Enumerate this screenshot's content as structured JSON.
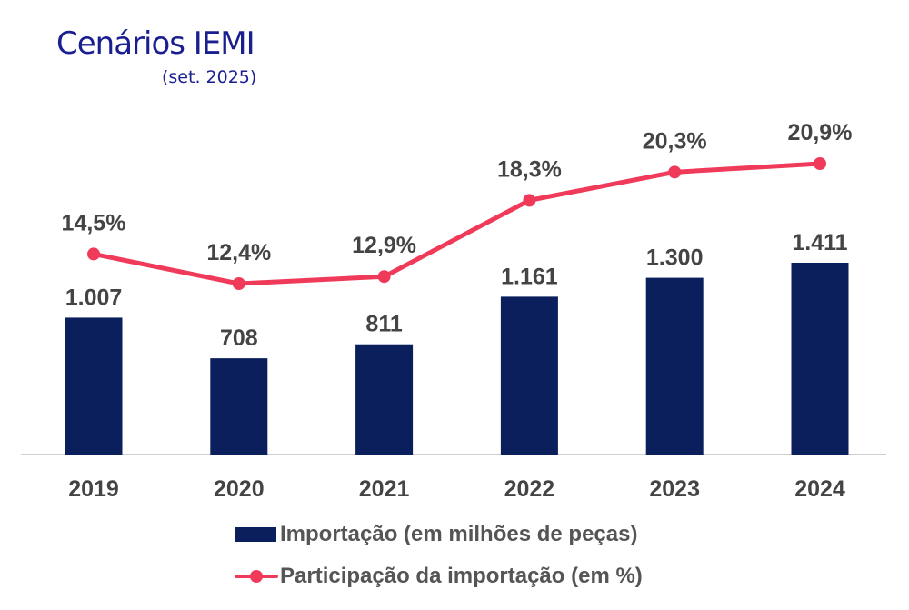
{
  "header": {
    "title": "Cenários IEMI",
    "subtitle": "(set. 2025)"
  },
  "colors": {
    "bar": "#0b1f5c",
    "line": "#f03a5a",
    "label": "#444444",
    "title": "#1a1f8f",
    "axis": "#d0d0d0"
  },
  "chart_data": {
    "type": "bar",
    "title": "Cenários IEMI",
    "subtitle": "(set. 2025)",
    "categories": [
      "2019",
      "2020",
      "2021",
      "2022",
      "2023",
      "2024"
    ],
    "series": [
      {
        "name": "Importação (em milhões de peças)",
        "type": "bar",
        "values": [
          1007,
          708,
          811,
          1161,
          1300,
          1411
        ],
        "labels": [
          "1.007",
          "708",
          "811",
          "1.161",
          "1.300",
          "1.411"
        ]
      },
      {
        "name": "Participação da importação (em %)",
        "type": "line",
        "values": [
          14.5,
          12.4,
          12.9,
          18.3,
          20.3,
          20.9
        ],
        "labels": [
          "14,5%",
          "12,4%",
          "12,9%",
          "18,3%",
          "20,3%",
          "20,9%"
        ]
      }
    ],
    "xlabel": "",
    "ylabel": "",
    "grid": false,
    "legend": "bottom-center"
  }
}
